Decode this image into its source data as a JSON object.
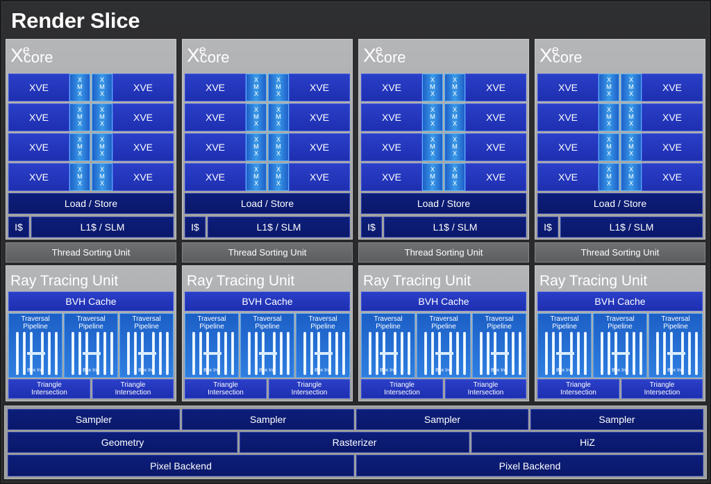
{
  "title": "Render Slice",
  "xe_core": {
    "logo_x": "X",
    "logo_e": "e",
    "logo_core": "core",
    "xve_label": "XVE",
    "xmx_letters": [
      "X",
      "M",
      "X"
    ],
    "load_store": "Load / Store",
    "icache": "I$",
    "l1_slm": "L1$ / SLM"
  },
  "thread_sorting_unit": "Thread Sorting Unit",
  "ray_tracing_unit": {
    "title": "Ray Tracing Unit",
    "bvh_cache": "BVH Cache",
    "traversal_line1": "Traversal",
    "traversal_line2": "Pipeline",
    "box_int": "Box Int.",
    "triangle_line1": "Triangle",
    "triangle_line2": "Intersection"
  },
  "fixed_function": {
    "sampler": "Sampler",
    "geometry": "Geometry",
    "rasterizer": "Rasterizer",
    "hiz": "HiZ",
    "pixel_backend": "Pixel Backend"
  },
  "colors": {
    "block_blue": "#1e2fb0",
    "dark_blue": "#0a186a",
    "xmx_cyan": "#3a9ae8",
    "panel_gray": "#a8a9ab"
  }
}
